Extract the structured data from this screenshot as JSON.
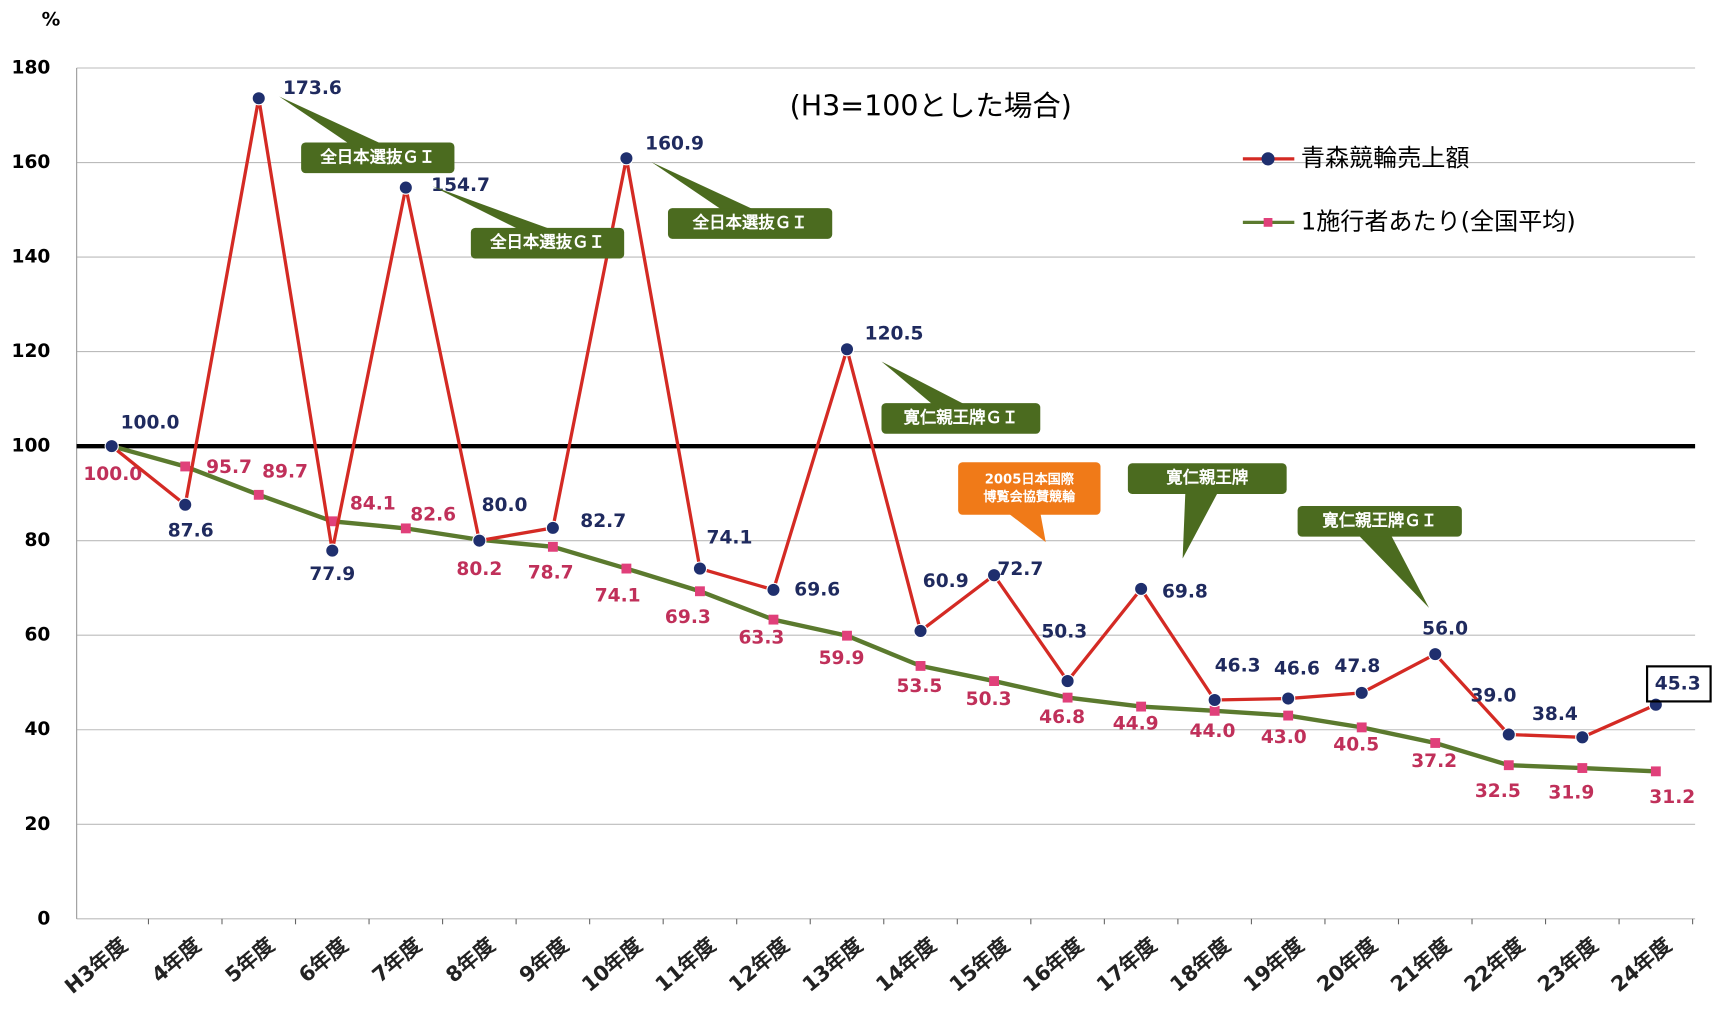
{
  "chart_data": {
    "type": "line",
    "y_label": "%",
    "subtitle": "(H3=100とした場合)",
    "categories": [
      "H3年度",
      "4年度",
      "5年度",
      "6年度",
      "7年度",
      "8年度",
      "9年度",
      "10年度",
      "11年度",
      "12年度",
      "13年度",
      "14年度",
      "15年度",
      "16年度",
      "17年度",
      "18年度",
      "19年度",
      "20年度",
      "21年度",
      "22年度",
      "23年度",
      "24年度"
    ],
    "series": [
      {
        "name": "青森競輪売上額",
        "color": "#d42a24",
        "marker_color": "#1f2f6e",
        "marker": "circle",
        "values": [
          100.0,
          87.6,
          173.6,
          77.9,
          154.7,
          80.0,
          82.7,
          160.9,
          74.1,
          69.6,
          120.5,
          60.9,
          72.7,
          50.3,
          69.8,
          46.3,
          46.6,
          47.8,
          56.0,
          39.0,
          38.4,
          45.3
        ],
        "value_labels": [
          "100.0",
          "87.6",
          "173.6",
          "77.9",
          "154.7",
          "80.0",
          "82.7",
          "160.9",
          "74.1",
          "69.6",
          "120.5",
          "60.9",
          "72.7",
          "50.3",
          "69.8",
          "46.3",
          "46.6",
          "47.8",
          "56.0",
          "39.0",
          "38.4",
          "45.3"
        ]
      },
      {
        "name": "1施行者あたり(全国平均)",
        "color": "#5b7a2e",
        "marker_color": "#e0407a",
        "marker": "square",
        "values": [
          100.0,
          95.7,
          89.7,
          84.1,
          82.6,
          80.2,
          78.7,
          74.1,
          69.3,
          63.3,
          59.9,
          53.5,
          50.3,
          46.8,
          44.9,
          44.0,
          43.0,
          40.5,
          37.2,
          32.5,
          31.9,
          31.2
        ],
        "value_labels": [
          "100.0",
          "95.7",
          "89.7",
          "84.1",
          "82.6",
          "80.2",
          "78.7",
          "74.1",
          "69.3",
          "63.3",
          "59.9",
          "53.5",
          "50.3",
          "46.8",
          "44.9",
          "44.0",
          "43.0",
          "40.5",
          "37.2",
          "32.5",
          "31.9",
          "31.2"
        ]
      }
    ],
    "ylim": [
      0,
      180
    ],
    "yticks": [
      0,
      20,
      40,
      60,
      80,
      100,
      120,
      140,
      160,
      180
    ],
    "grid": true,
    "reference_line": 100,
    "legend": "top-right",
    "annotations": [
      "全日本選抜ＧＩ",
      "全日本選抜ＧＩ",
      "全日本選抜ＧＩ",
      "寛仁親王牌ＧＩ",
      "2005日本国際\n博覧会協賛競輪",
      "寛仁親王牌",
      "寛仁親王牌ＧＩ"
    ]
  }
}
